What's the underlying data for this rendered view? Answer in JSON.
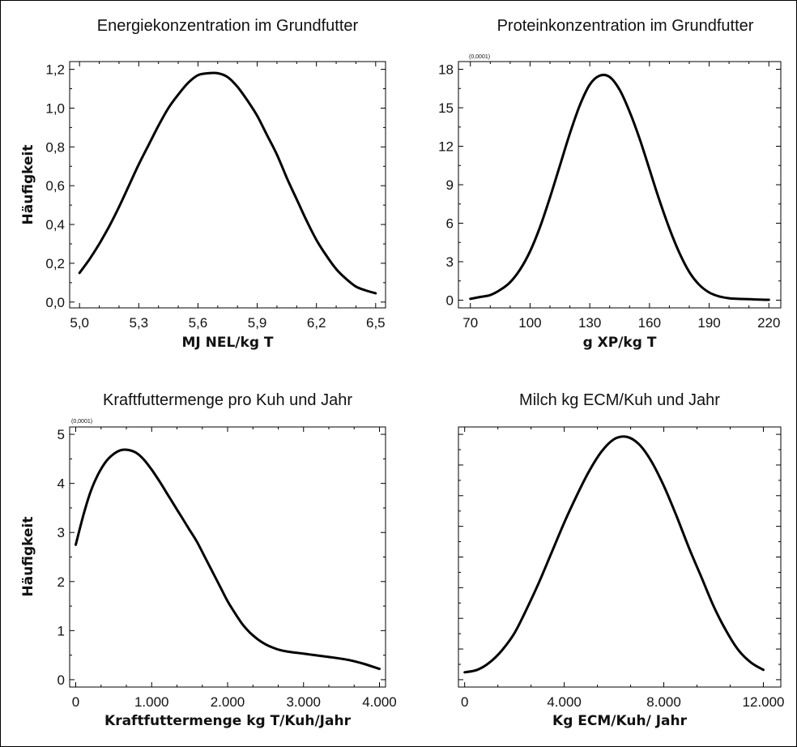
{
  "chart_data": [
    {
      "type": "line",
      "title": "Energiekonzentration im Grundfutter",
      "xlabel": "MJ NEL/kg T",
      "ylabel": "Häufigkeit",
      "multiplier": "",
      "xlim": [
        4.95,
        6.55
      ],
      "ylim": [
        -0.03,
        1.24
      ],
      "xticks": [
        5.0,
        5.3,
        5.6,
        5.9,
        6.2,
        6.5
      ],
      "xtick_labels": [
        "5,0",
        "5,3",
        "5,6",
        "5,9",
        "6,2",
        "6,5"
      ],
      "yticks": [
        0,
        0.2,
        0.4,
        0.6,
        0.8,
        1.0,
        1.2
      ],
      "ytick_labels": [
        "0,0",
        "0,2",
        "0,4",
        "0,6",
        "0,8",
        "1,0",
        "1,2"
      ],
      "series": [
        {
          "x": [
            5.0,
            5.05,
            5.1,
            5.15,
            5.2,
            5.25,
            5.3,
            5.35,
            5.4,
            5.45,
            5.5,
            5.55,
            5.6,
            5.65,
            5.7,
            5.75,
            5.8,
            5.85,
            5.9,
            5.95,
            6.0,
            6.05,
            6.1,
            6.15,
            6.2,
            6.25,
            6.3,
            6.35,
            6.4,
            6.45,
            6.5
          ],
          "y": [
            0.15,
            0.22,
            0.3,
            0.39,
            0.49,
            0.6,
            0.71,
            0.81,
            0.91,
            1.0,
            1.07,
            1.13,
            1.17,
            1.18,
            1.18,
            1.16,
            1.11,
            1.04,
            0.96,
            0.86,
            0.76,
            0.64,
            0.53,
            0.42,
            0.32,
            0.24,
            0.17,
            0.12,
            0.08,
            0.06,
            0.045
          ]
        }
      ]
    },
    {
      "type": "line",
      "title": "Proteinkonzentration im Grundfutter",
      "xlabel": "g XP/kg T",
      "ylabel": "",
      "multiplier": "(0,0001)",
      "xlim": [
        64,
        226
      ],
      "ylim": [
        -0.6,
        18.6
      ],
      "xticks": [
        70,
        100,
        130,
        160,
        190,
        220
      ],
      "xtick_labels": [
        "70",
        "100",
        "130",
        "160",
        "190",
        "220"
      ],
      "yticks": [
        0,
        3,
        6,
        9,
        12,
        15,
        18
      ],
      "ytick_labels": [
        "0",
        "3",
        "6",
        "9",
        "12",
        "15",
        "18"
      ],
      "series": [
        {
          "x": [
            70,
            75,
            80,
            85,
            90,
            95,
            100,
            105,
            110,
            115,
            120,
            125,
            130,
            135,
            140,
            145,
            150,
            155,
            160,
            165,
            170,
            175,
            180,
            185,
            190,
            195,
            200,
            205,
            210,
            215,
            220
          ],
          "y": [
            0.1,
            0.25,
            0.4,
            0.8,
            1.4,
            2.4,
            3.8,
            5.7,
            8.0,
            10.5,
            13.0,
            15.2,
            16.8,
            17.5,
            17.4,
            16.4,
            14.7,
            12.6,
            10.2,
            7.8,
            5.6,
            3.7,
            2.2,
            1.2,
            0.6,
            0.3,
            0.15,
            0.1,
            0.08,
            0.05,
            0.03
          ]
        }
      ]
    },
    {
      "type": "line",
      "title": "Kraftfuttermenge pro Kuh und Jahr",
      "xlabel": "Kraftfuttermenge kg T/Kuh/Jahr",
      "ylabel": "Häufigkeit",
      "multiplier": "(0,0001)",
      "xlim": [
        -80,
        4080
      ],
      "ylim": [
        -0.15,
        5.15
      ],
      "xticks": [
        0,
        1000,
        2000,
        3000,
        4000
      ],
      "xtick_labels": [
        "0",
        "1.000",
        "2.000",
        "3.000",
        "4.000"
      ],
      "yticks": [
        0,
        1,
        2,
        3,
        4,
        5
      ],
      "ytick_labels": [
        "0",
        "1",
        "2",
        "3",
        "4",
        "5"
      ],
      "series": [
        {
          "x": [
            0,
            100,
            200,
            300,
            400,
            500,
            600,
            700,
            800,
            900,
            1000,
            1100,
            1200,
            1300,
            1400,
            1500,
            1600,
            1700,
            1800,
            1900,
            2000,
            2100,
            2200,
            2300,
            2400,
            2500,
            2600,
            2700,
            2800,
            2900,
            3000,
            3200,
            3400,
            3600,
            3800,
            4000
          ],
          "y": [
            2.75,
            3.35,
            3.85,
            4.2,
            4.45,
            4.6,
            4.68,
            4.68,
            4.62,
            4.48,
            4.28,
            4.05,
            3.8,
            3.55,
            3.3,
            3.05,
            2.8,
            2.5,
            2.2,
            1.9,
            1.6,
            1.35,
            1.12,
            0.95,
            0.82,
            0.72,
            0.65,
            0.6,
            0.57,
            0.55,
            0.53,
            0.49,
            0.45,
            0.4,
            0.32,
            0.22
          ]
        }
      ]
    },
    {
      "type": "line",
      "title": "Milch kg ECM/Kuh und Jahr",
      "xlabel": "Kg ECM/Kuh/ Jahr",
      "ylabel": "",
      "multiplier": "",
      "xlim": [
        -250,
        12700
      ],
      "ylim": [
        -0.03,
        1.03
      ],
      "xticks": [
        0,
        4000,
        8000,
        12000
      ],
      "xtick_labels": [
        "0",
        "4.000",
        "8.000",
        "12.000"
      ],
      "yticks": [
        0.0,
        0.125,
        0.25,
        0.375,
        0.5,
        0.625,
        0.75,
        0.875,
        1.0
      ],
      "ytick_labels": [
        "",
        "",
        "",
        "",
        "",
        "",
        "",
        "",
        ""
      ],
      "series": [
        {
          "x": [
            0,
            500,
            1000,
            1500,
            2000,
            2500,
            3000,
            3500,
            4000,
            4500,
            5000,
            5500,
            6000,
            6500,
            7000,
            7500,
            8000,
            8500,
            9000,
            9500,
            10000,
            10500,
            11000,
            11500,
            12000
          ],
          "y": [
            0.03,
            0.04,
            0.07,
            0.12,
            0.19,
            0.29,
            0.4,
            0.52,
            0.64,
            0.75,
            0.85,
            0.93,
            0.98,
            0.99,
            0.96,
            0.89,
            0.79,
            0.67,
            0.54,
            0.42,
            0.3,
            0.2,
            0.12,
            0.07,
            0.04
          ]
        }
      ]
    }
  ]
}
